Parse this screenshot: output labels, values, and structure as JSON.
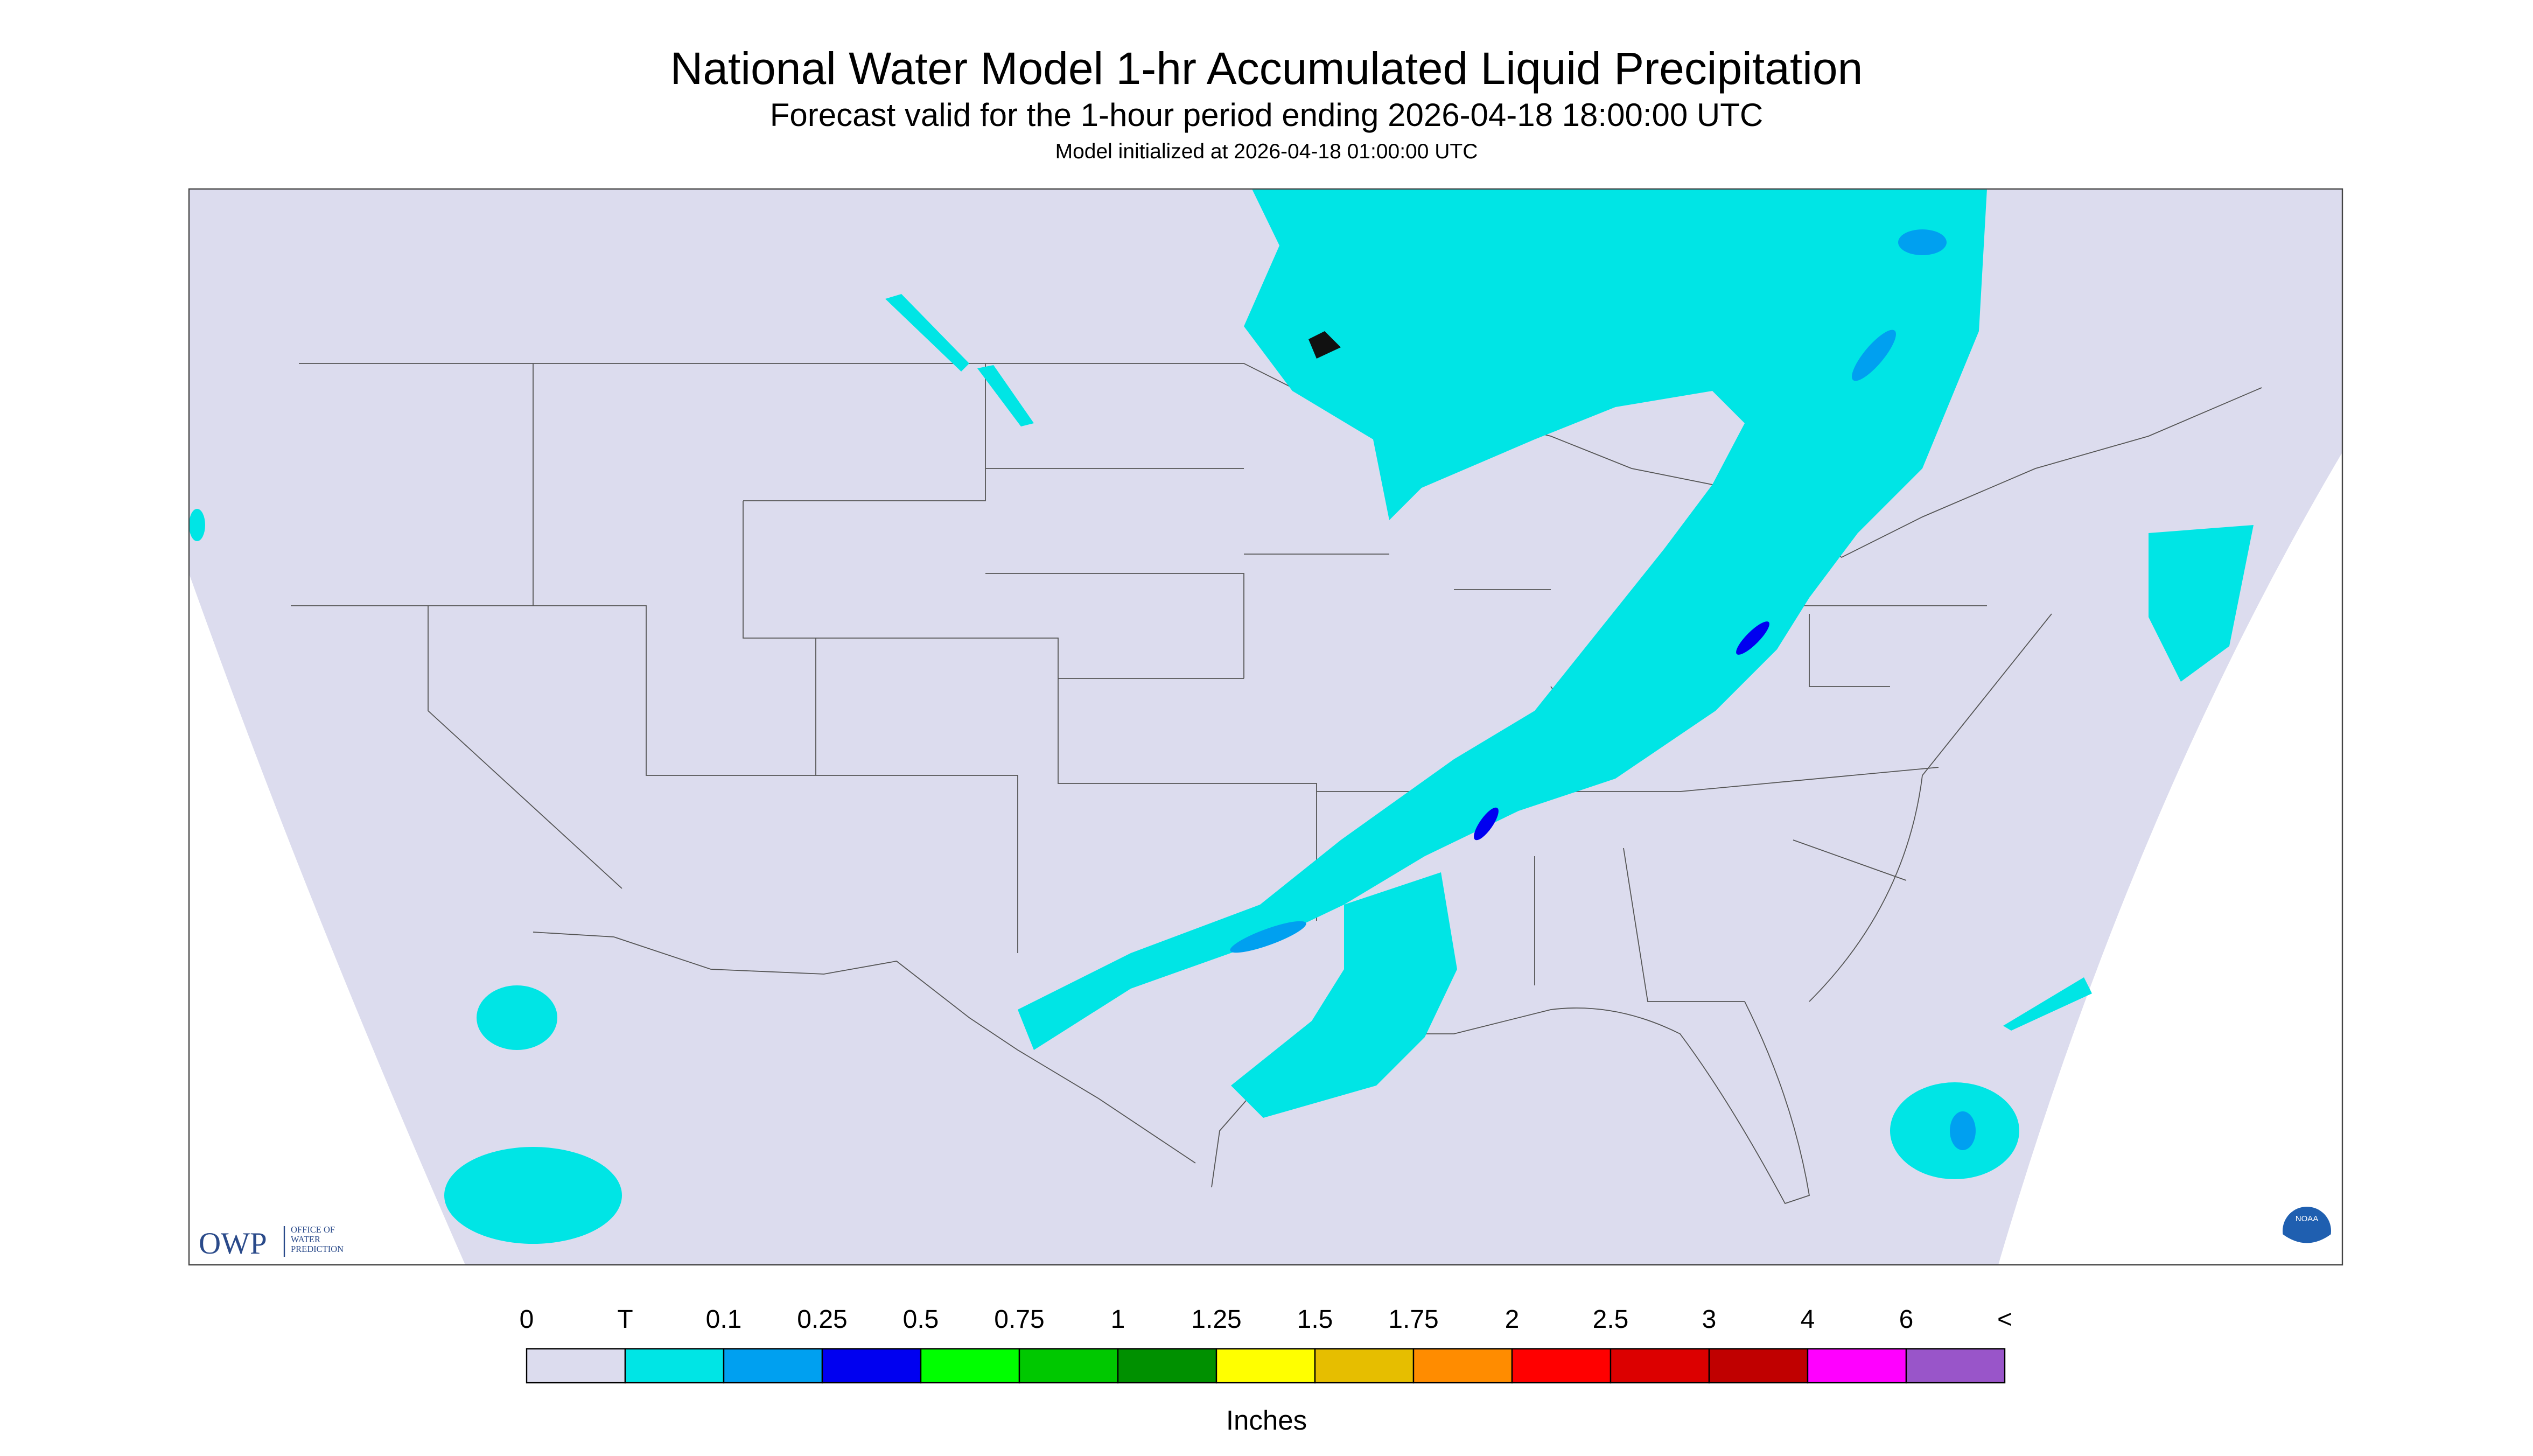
{
  "header": {
    "title": "National Water Model 1-hr Accumulated Liquid Precipitation",
    "subtitle": "Forecast valid for the 1-hour period ending 2026-04-18 18:00:00 UTC",
    "initialized": "Model initialized at 2026-04-18 01:00:00 UTC"
  },
  "logos": {
    "owp": "OWP",
    "owp_lines": [
      "OFFICE OF",
      "WATER",
      "PREDICTION"
    ],
    "noaa": "NOAA"
  },
  "legend": {
    "labels": [
      "0",
      "T",
      "0.1",
      "0.25",
      "0.5",
      "0.75",
      "1",
      "1.25",
      "1.5",
      "1.75",
      "2",
      "2.5",
      "3",
      "4",
      "6",
      "<"
    ],
    "colors": [
      "#dcdcee",
      "#00e5e5",
      "#00a0f0",
      "#0000f0",
      "#00ff00",
      "#00c800",
      "#009000",
      "#ffff00",
      "#e6be00",
      "#ff8c00",
      "#ff0000",
      "#dc0000",
      "#c00000",
      "#ff00ff",
      "#9955c9"
    ],
    "units": "Inches"
  }
}
